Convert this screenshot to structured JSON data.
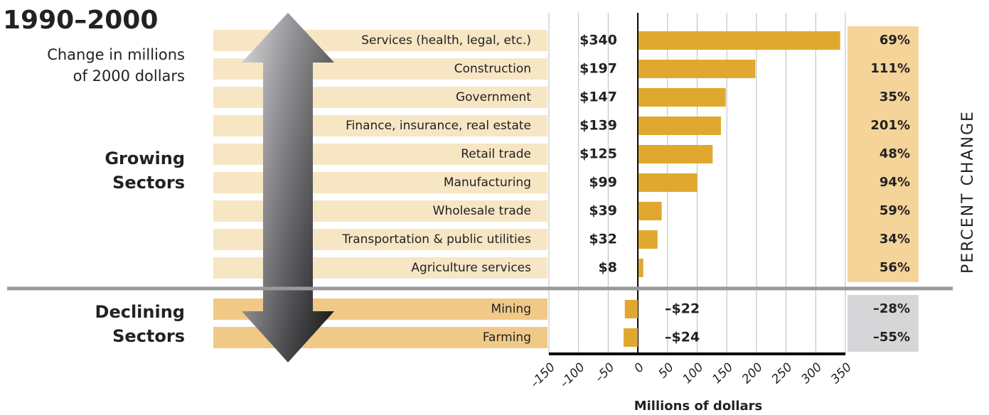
{
  "chart_data": {
    "type": "bar",
    "orientation": "horizontal",
    "title": "1990–2000",
    "subtitle": "Change in millions of 2000 dollars",
    "group_labels": [
      "Growing Sectors",
      "Declining Sectors"
    ],
    "side_label": "PERCENT CHANGE",
    "x_label": "Millions of dollars",
    "categories": [
      "Services (health, legal, etc.)",
      "Construction",
      "Government",
      "Finance, insurance, real estate",
      "Retail trade",
      "Manufacturing",
      "Wholesale trade",
      "Transportation & public utilities",
      "Agriculture services",
      "Mining",
      "Farming"
    ],
    "values": [
      340,
      197,
      147,
      139,
      125,
      99,
      39,
      32,
      8,
      -22,
      -24
    ],
    "value_labels": [
      "$340",
      "$197",
      "$147",
      "$139",
      "$125",
      "$99",
      "$39",
      "$32",
      "$8",
      "–$22",
      "–$24"
    ],
    "percent_labels": [
      "69%",
      "111%",
      "35%",
      "201%",
      "48%",
      "94%",
      "59%",
      "34%",
      "56%",
      "–28%",
      "–55%"
    ],
    "color": "#e0a82e",
    "xlim": [
      -150,
      350
    ],
    "xticks": [
      {
        "value": -150,
        "label": "–150"
      },
      {
        "value": -100,
        "label": "–100"
      },
      {
        "value": -50,
        "label": "–50"
      },
      0,
      50,
      100,
      150,
      200,
      250,
      300,
      350
    ],
    "grid": true
  }
}
